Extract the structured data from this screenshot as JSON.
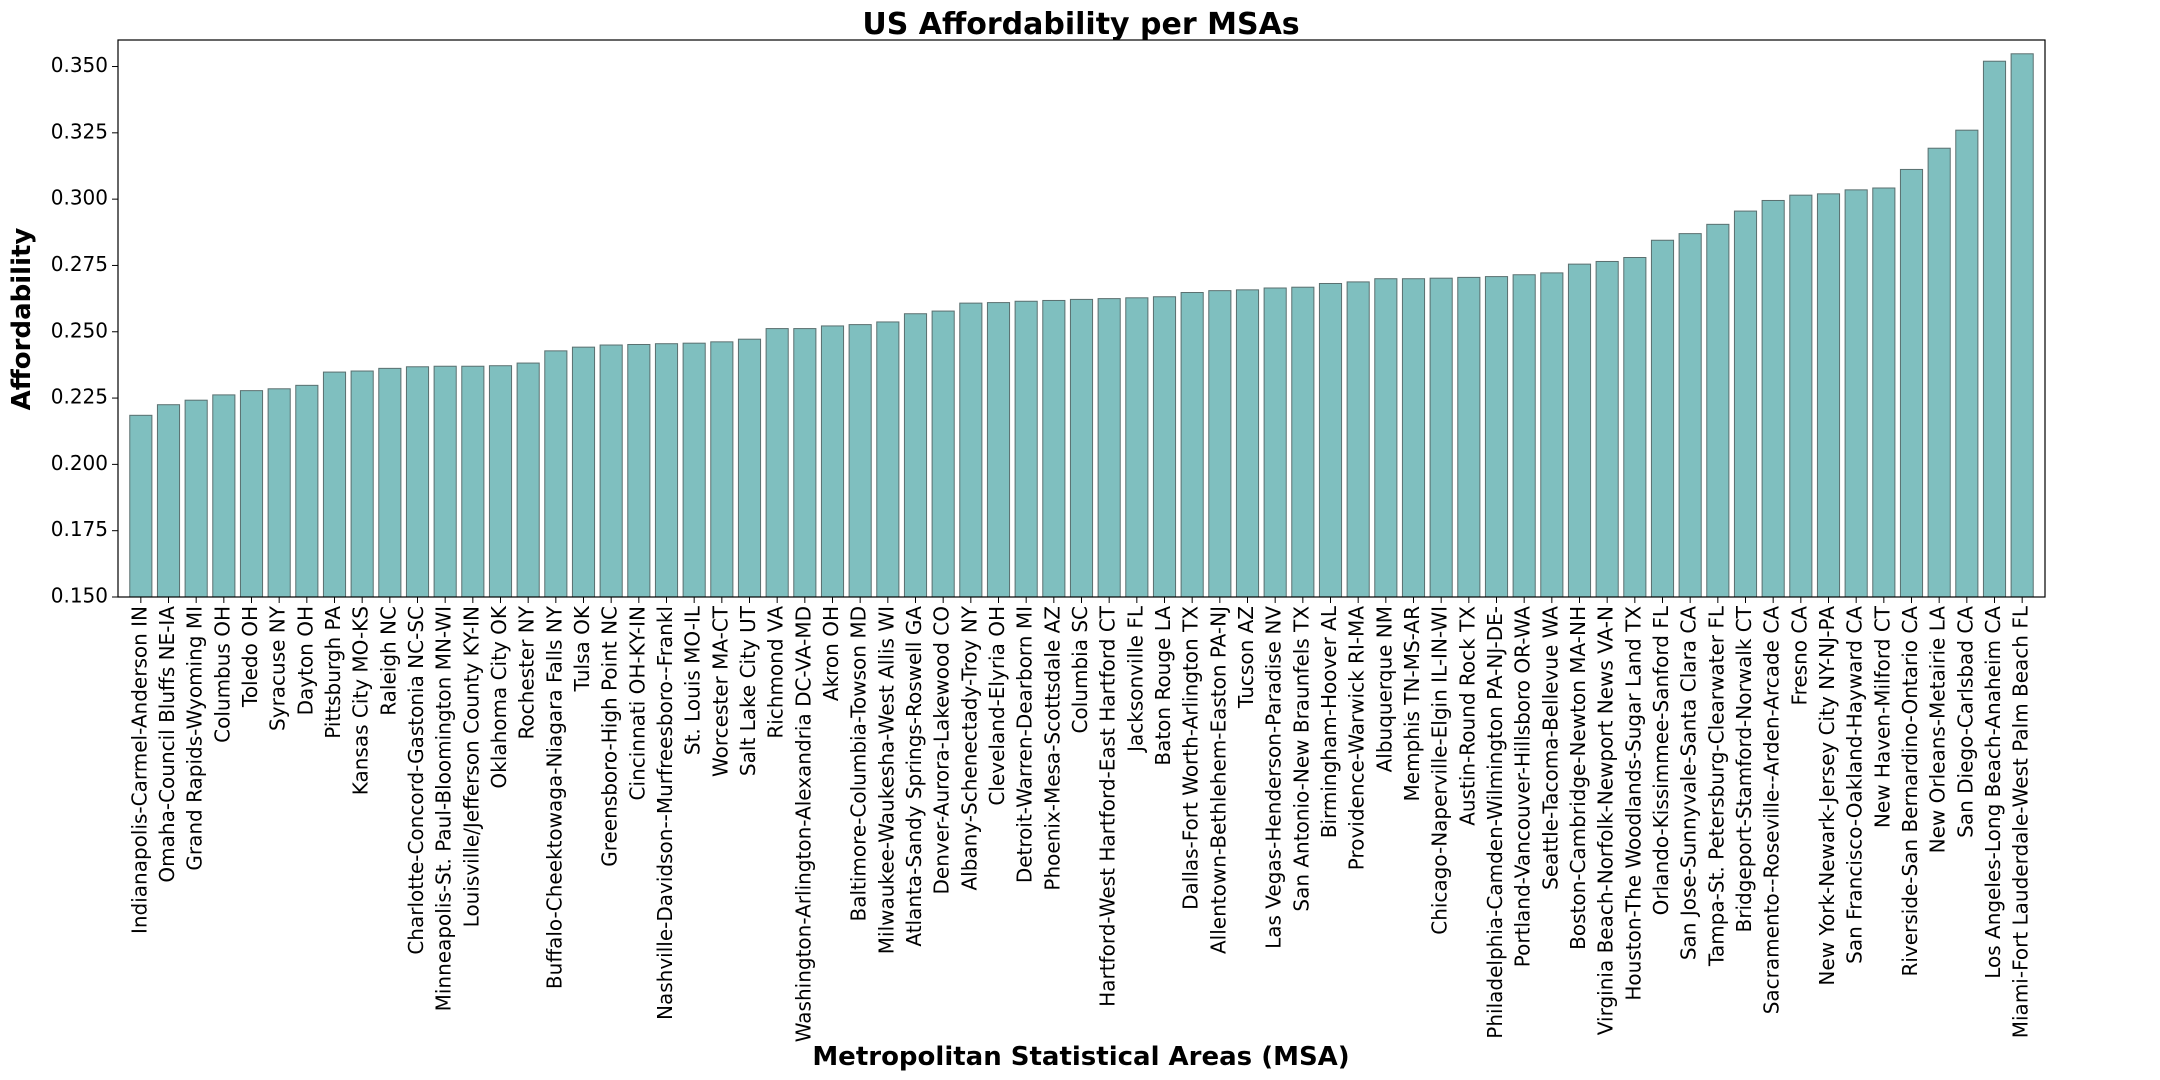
{
  "chart_data": {
    "type": "bar",
    "title": "US Affordability per MSAs",
    "xlabel": "Metropolitan Statistical Areas (MSA)",
    "ylabel": "Affordability",
    "ylim": [
      0.15,
      0.36
    ],
    "yticks": [
      "0.150",
      "0.175",
      "0.200",
      "0.225",
      "0.250",
      "0.275",
      "0.300",
      "0.325",
      "0.350"
    ],
    "grid": false,
    "bar_color": "#7fbfbf",
    "bar_edge_color": "#5a6f6f",
    "categories": [
      "Indianapolis-Carmel-Anderson IN",
      "Omaha-Council Bluffs NE-IA",
      "Grand Rapids-Wyoming MI",
      "Columbus OH",
      "Toledo OH",
      "Syracuse NY",
      "Dayton OH",
      "Pittsburgh PA",
      "Kansas City MO-KS",
      "Raleigh NC",
      "Charlotte-Concord-Gastonia NC-SC",
      "Minneapolis-St. Paul-Bloomington MN-WI",
      "Louisville/Jefferson County KY-IN",
      "Oklahoma City OK",
      "Rochester NY",
      "Buffalo-Cheektowaga-Niagara Falls NY",
      "Tulsa OK",
      "Greensboro-High Point NC",
      "Cincinnati OH-KY-IN",
      "Nashville-Davidson--Murfreesboro--Frankl",
      "St. Louis MO-IL",
      "Worcester MA-CT",
      "Salt Lake City UT",
      "Richmond VA",
      "Washington-Arlington-Alexandria DC-VA-MD",
      "Akron OH",
      "Baltimore-Columbia-Towson MD",
      "Milwaukee-Waukesha-West Allis WI",
      "Atlanta-Sandy Springs-Roswell GA",
      "Denver-Aurora-Lakewood CO",
      "Albany-Schenectady-Troy NY",
      "Cleveland-Elyria OH",
      "Detroit-Warren-Dearborn MI",
      "Phoenix-Mesa-Scottsdale AZ",
      "Columbia SC",
      "Hartford-West Hartford-East Hartford CT",
      "Jacksonville FL",
      "Baton Rouge LA",
      "Dallas-Fort Worth-Arlington TX",
      "Allentown-Bethlehem-Easton PA-NJ",
      "Tucson AZ",
      "Las Vegas-Henderson-Paradise NV",
      "San Antonio-New Braunfels TX",
      "Birmingham-Hoover AL",
      "Providence-Warwick RI-MA",
      "Albuquerque NM",
      "Memphis TN-MS-AR",
      "Chicago-Naperville-Elgin IL-IN-WI",
      "Austin-Round Rock TX",
      "Philadelphia-Camden-Wilmington PA-NJ-DE-",
      "Portland-Vancouver-Hillsboro OR-WA",
      "Seattle-Tacoma-Bellevue WA",
      "Boston-Cambridge-Newton MA-NH",
      "Virginia Beach-Norfolk-Newport News VA-N",
      "Houston-The Woodlands-Sugar Land TX",
      "Orlando-Kissimmee-Sanford FL",
      "San Jose-Sunnyvale-Santa Clara CA",
      "Tampa-St. Petersburg-Clearwater FL",
      "Bridgeport-Stamford-Norwalk CT",
      "Sacramento--Roseville--Arden-Arcade CA",
      "Fresno CA",
      "New York-Newark-Jersey City NY-NJ-PA",
      "San Francisco-Oakland-Hayward CA",
      "New Haven-Milford CT",
      "Riverside-San Bernardino-Ontario CA",
      "New Orleans-Metairie LA",
      "San Diego-Carlsbad CA",
      "Los Angeles-Long Beach-Anaheim CA",
      "Miami-Fort Lauderdale-West Palm Beach FL"
    ],
    "values": [
      0.2185,
      0.2225,
      0.2242,
      0.2262,
      0.2278,
      0.2285,
      0.2298,
      0.2348,
      0.2352,
      0.2362,
      0.2368,
      0.237,
      0.237,
      0.2372,
      0.2382,
      0.2428,
      0.2442,
      0.245,
      0.2452,
      0.2455,
      0.2457,
      0.2462,
      0.2472,
      0.2512,
      0.2512,
      0.2522,
      0.2527,
      0.2537,
      0.2568,
      0.2578,
      0.2608,
      0.261,
      0.2615,
      0.2618,
      0.2622,
      0.2625,
      0.2628,
      0.2632,
      0.2648,
      0.2655,
      0.2658,
      0.2665,
      0.2668,
      0.2682,
      0.2688,
      0.27,
      0.27,
      0.2702,
      0.2705,
      0.2708,
      0.2715,
      0.2722,
      0.2755,
      0.2765,
      0.278,
      0.2845,
      0.287,
      0.2905,
      0.2955,
      0.2995,
      0.3015,
      0.302,
      0.3035,
      0.3042,
      0.3112,
      0.3192,
      0.326,
      0.352,
      0.3548
    ]
  }
}
